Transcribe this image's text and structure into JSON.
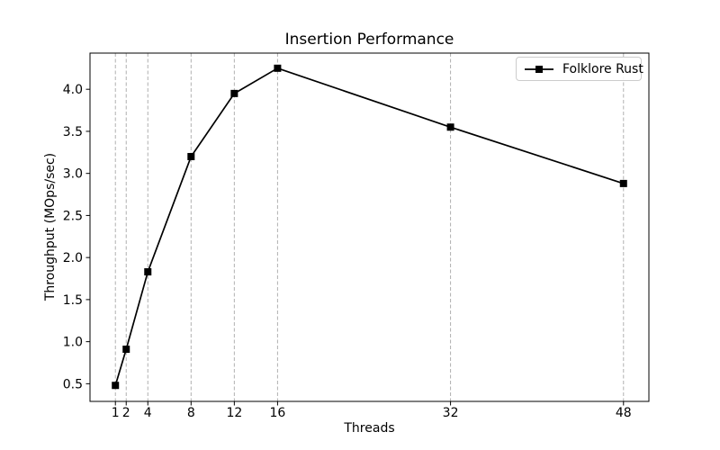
{
  "chart_data": {
    "type": "line",
    "title": "Insertion Performance",
    "xlabel": "Threads",
    "ylabel": "Throughput (MOps/sec)",
    "x": [
      1,
      2,
      4,
      8,
      12,
      16,
      32,
      48
    ],
    "series": [
      {
        "name": "Folklore Rust",
        "values": [
          0.48,
          0.91,
          1.83,
          3.2,
          3.95,
          4.25,
          3.55,
          2.88
        ],
        "color": "#000000",
        "marker": "square",
        "marker_size": 8,
        "line_width": 1.7
      }
    ],
    "xticks": {
      "values": [
        1,
        2,
        4,
        8,
        12,
        16,
        32,
        48
      ],
      "labels": [
        "1",
        "2",
        "4",
        "8",
        "12",
        "16",
        "32",
        "48"
      ]
    },
    "yticks": {
      "values": [
        0.5,
        1.0,
        1.5,
        2.0,
        2.5,
        3.0,
        3.5,
        4.0
      ],
      "labels": [
        "0.5",
        "1.0",
        "1.5",
        "2.0",
        "2.5",
        "3.0",
        "3.5",
        "4.0"
      ]
    },
    "xlim": [
      -1.35,
      50.35
    ],
    "ylim": [
      0.29,
      4.43
    ],
    "grid": {
      "vertical": true,
      "horizontal": false,
      "color": "#b0b0b0",
      "style": "dashed"
    },
    "legend": {
      "position": "top-right",
      "entries": [
        "Folklore Rust"
      ]
    },
    "axis_color": "#000000",
    "background": "#ffffff"
  }
}
